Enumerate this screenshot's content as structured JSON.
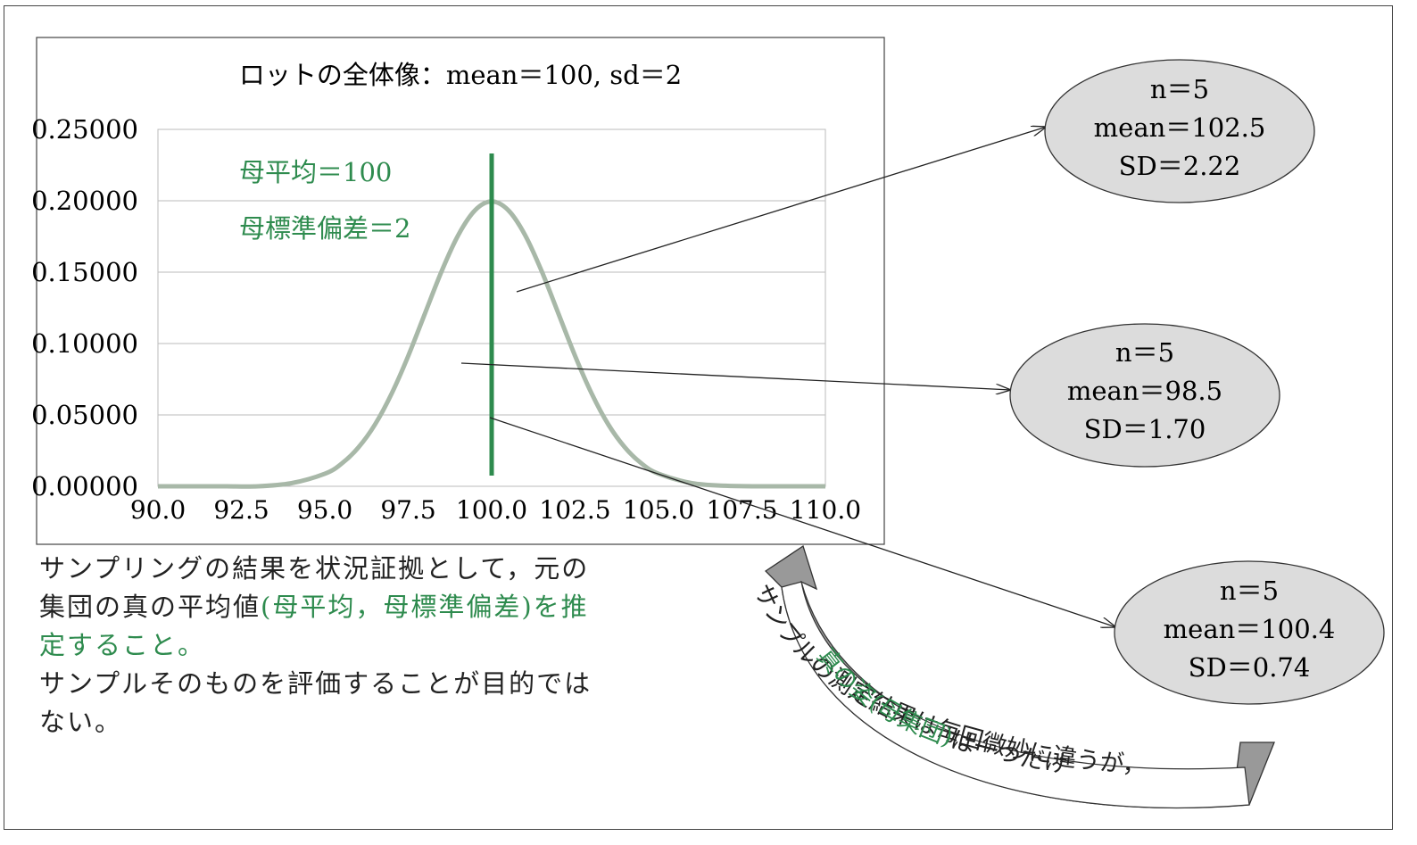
{
  "colors": {
    "curve": "#a8b8a8",
    "mean_line": "#2e8b4e",
    "accent_text": "#2e8b4e",
    "ellipse_fill": "#dcdcdc",
    "arrow_fill": "#999999"
  },
  "chart_data": {
    "type": "line",
    "title": "ロットの全体像：mean＝100, sd＝2",
    "distribution": "normal",
    "mean": 100,
    "sd": 2,
    "xlim": [
      90.0,
      110.0
    ],
    "ylim": [
      0.0,
      0.25
    ],
    "x_ticks": [
      "90.0",
      "92.5",
      "95.0",
      "97.5",
      "100.0",
      "102.5",
      "105.0",
      "107.5",
      "110.0"
    ],
    "x_tick_values": [
      90.0,
      92.5,
      95.0,
      97.5,
      100.0,
      102.5,
      105.0,
      107.5,
      110.0
    ],
    "y_ticks": [
      "0.00000",
      "0.05000",
      "0.10000",
      "0.15000",
      "0.20000",
      "0.25000"
    ],
    "y_tick_values": [
      0.0,
      0.05,
      0.1,
      0.15,
      0.2,
      0.25
    ],
    "grid": "horizontal",
    "x": [
      90,
      91,
      92,
      93,
      94,
      95,
      95.5,
      96,
      96.5,
      97,
      97.5,
      98,
      98.5,
      99,
      99.5,
      100,
      100.5,
      101,
      101.5,
      102,
      102.5,
      103,
      103.5,
      104,
      104.5,
      105,
      106,
      107,
      108,
      109,
      110
    ],
    "y": [
      0.0,
      0.0,
      0.0,
      0.0,
      0.0022,
      0.0088,
      0.0158,
      0.027,
      0.0431,
      0.0648,
      0.0913,
      0.121,
      0.1506,
      0.176,
      0.1933,
      0.1995,
      0.1933,
      0.176,
      0.1506,
      0.121,
      0.0913,
      0.0648,
      0.0431,
      0.027,
      0.0158,
      0.0088,
      0.0022,
      0.0004,
      0.0,
      0.0,
      0.0
    ],
    "annotations": [
      "母平均＝100",
      "母標準偏差＝2"
    ]
  },
  "samples": [
    {
      "n": "n＝5",
      "mean": "mean＝102.5",
      "sd": "SD＝2.22"
    },
    {
      "n": "n＝5",
      "mean": "mean＝98.5",
      "sd": "SD＝1.70"
    },
    {
      "n": "n＝5",
      "mean": "mean＝100.4",
      "sd": "SD＝0.74"
    }
  ],
  "explanation": {
    "line1": "サンプリングの結果を状況証拠として，元の",
    "line2a": "集団の真の平均値",
    "line2b": "(母平均，母標準偏差)を推",
    "line3": "定すること。",
    "line4": "サンプルそのものを評価することが目的では",
    "line5": "ない。"
  },
  "arrow_text": {
    "outer": "サンプルの測定結果は毎回微妙に違うが，",
    "inner_green": "真の姿(母集団)",
    "inner_black": "は一つだけ"
  }
}
